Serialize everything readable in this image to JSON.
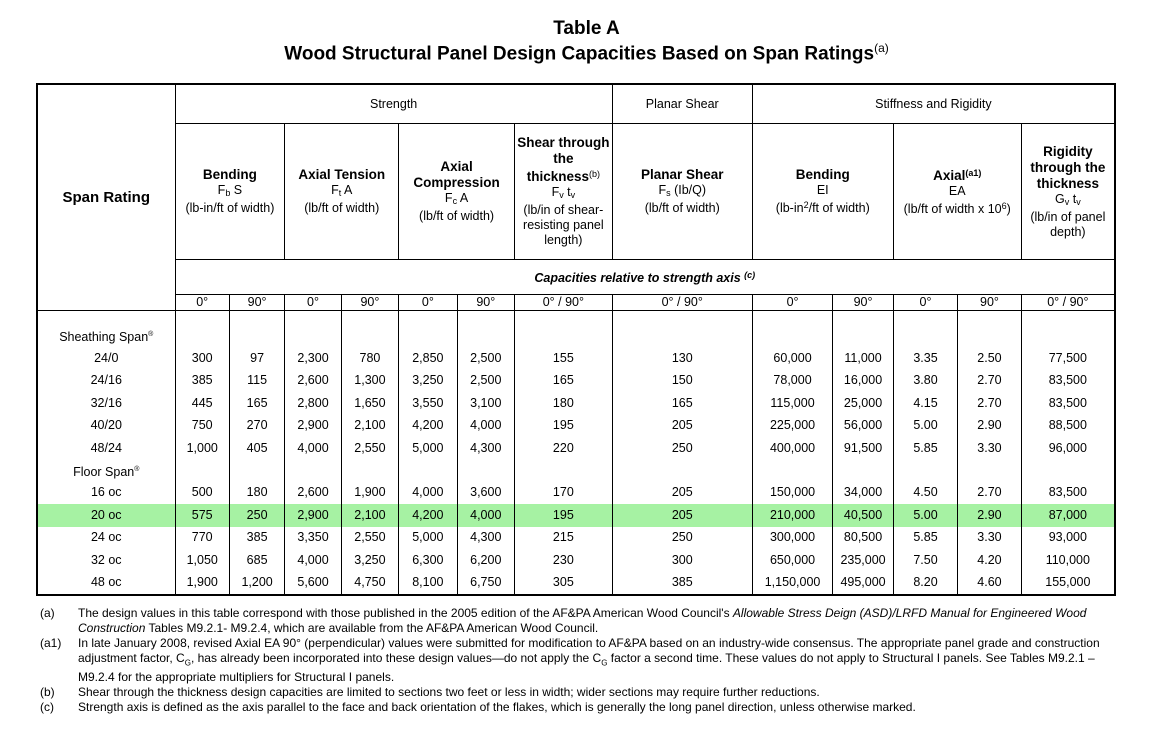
{
  "title": "Table A",
  "subtitle": "Wood Structural Panel Design Capacities Based on Span Ratings",
  "subtitle_note": "(a)",
  "groups": {
    "span_rating": "Span Rating",
    "strength": "Strength",
    "planar_shear": "Planar Shear",
    "stiffness": "Stiffness and Rigidity"
  },
  "columns": {
    "bending": {
      "name": "Bending",
      "sym": "F",
      "sub": "b",
      "sym2": " S",
      "unit": "(lb-in/ft of width)"
    },
    "axial_tension": {
      "name": "Axial Tension",
      "sym": "F",
      "sub": "t",
      "sym2": " A",
      "unit": "(lb/ft of width)"
    },
    "axial_compression": {
      "name": "Axial Compression",
      "sym": "F",
      "sub": "c",
      "sym2": " A",
      "unit": "(lb/ft of width)"
    },
    "shear_thickness": {
      "name": "Shear through the thickness",
      "note": "(b)",
      "sym": "F",
      "sub": "v",
      "sym2": " t",
      "sub2": "v",
      "unit": "(lb/in of shear-resisting panel length)"
    },
    "planar_shear": {
      "name": "Planar Shear",
      "sym": "F",
      "sub": "s",
      "sym2": " (Ib/Q)",
      "unit": "(lb/ft of width)"
    },
    "stiff_bending": {
      "name": "Bending",
      "sym": "EI",
      "unit": "(lb-in",
      "unit_sup": "2",
      "unit2": "/ft of width)"
    },
    "axial": {
      "name": "Axial",
      "note": "(a1)",
      "sym": "EA",
      "unit": "(lb/ft of width x 10",
      "unit_sup": "6",
      "unit2": ")"
    },
    "rigidity": {
      "name": "Rigidity through the thickness",
      "sym": "G",
      "sub": "v",
      "sym2": " t",
      "sub2": "v",
      "unit": "(lb/in of panel depth)"
    }
  },
  "capacities_note": "Capacities relative to strength axis",
  "capacities_note_ref": "(c)",
  "angles": [
    "0°",
    "90°",
    "0°",
    "90°",
    "0°",
    "90°",
    "0° / 90°",
    "0° / 90°",
    "0°",
    "90°",
    "0°",
    "90°",
    "0° / 90°"
  ],
  "sections": [
    {
      "label": "Sheathing Span",
      "mark": "®",
      "rows": [
        {
          "label": "24/0",
          "values": [
            "300",
            "97",
            "2,300",
            "780",
            "2,850",
            "2,500",
            "155",
            "130",
            "60,000",
            "11,000",
            "3.35",
            "2.50",
            "77,500"
          ]
        },
        {
          "label": "24/16",
          "values": [
            "385",
            "115",
            "2,600",
            "1,300",
            "3,250",
            "2,500",
            "165",
            "150",
            "78,000",
            "16,000",
            "3.80",
            "2.70",
            "83,500"
          ]
        },
        {
          "label": "32/16",
          "values": [
            "445",
            "165",
            "2,800",
            "1,650",
            "3,550",
            "3,100",
            "180",
            "165",
            "115,000",
            "25,000",
            "4.15",
            "2.70",
            "83,500"
          ]
        },
        {
          "label": "40/20",
          "values": [
            "750",
            "270",
            "2,900",
            "2,100",
            "4,200",
            "4,000",
            "195",
            "205",
            "225,000",
            "56,000",
            "5.00",
            "2.90",
            "88,500"
          ]
        },
        {
          "label": "48/24",
          "values": [
            "1,000",
            "405",
            "4,000",
            "2,550",
            "5,000",
            "4,300",
            "220",
            "250",
            "400,000",
            "91,500",
            "5.85",
            "3.30",
            "96,000"
          ]
        }
      ]
    },
    {
      "label": "Floor Span",
      "mark": "®",
      "rows": [
        {
          "label": "16 oc",
          "values": [
            "500",
            "180",
            "2,600",
            "1,900",
            "4,000",
            "3,600",
            "170",
            "205",
            "150,000",
            "34,000",
            "4.50",
            "2.70",
            "83,500"
          ]
        },
        {
          "label": "20 oc",
          "highlight": true,
          "values": [
            "575",
            "250",
            "2,900",
            "2,100",
            "4,200",
            "4,000",
            "195",
            "205",
            "210,000",
            "40,500",
            "5.00",
            "2.90",
            "87,000"
          ]
        },
        {
          "label": "24 oc",
          "values": [
            "770",
            "385",
            "3,350",
            "2,550",
            "5,000",
            "4,300",
            "215",
            "250",
            "300,000",
            "80,500",
            "5.85",
            "3.30",
            "93,000"
          ]
        },
        {
          "label": "32 oc",
          "values": [
            "1,050",
            "685",
            "4,000",
            "3,250",
            "6,300",
            "6,200",
            "230",
            "300",
            "650,000",
            "235,000",
            "7.50",
            "4.20",
            "110,000"
          ]
        },
        {
          "label": "48 oc",
          "values": [
            "1,900",
            "1,200",
            "5,600",
            "4,750",
            "8,100",
            "6,750",
            "305",
            "385",
            "1,150,000",
            "495,000",
            "8.20",
            "4.60",
            "155,000"
          ]
        }
      ]
    }
  ],
  "highlight_color": "#a6f2a3",
  "notes": [
    {
      "key": "(a)",
      "text_before": "The design values in this table correspond with those published in the 2005 edition of the AF&PA American Wood Council's ",
      "italic": "Allowable Stress Deign (ASD)/LRFD Manual for Engineered Wood Construction",
      "text_after": " Tables M9.2.1- M9.2.4, which are available from the AF&PA American Wood Council."
    },
    {
      "key": "(a1)",
      "text_before": "In late January 2008, revised Axial EA 90° (perpendicular) values were submitted for modification to AF&PA based on an industry-wide consensus.  The appropriate panel grade and construction adjustment factor, C",
      "sub": "G",
      "text_mid": ", has already been incorporated into these design values—do not apply the C",
      "sub2": "G",
      "text_after": " factor a second time.  These values do not apply to Structural I panels.  See Tables M9.2.1 – M9.2.4 for the appropriate multipliers for Structural I panels."
    },
    {
      "key": "(b)",
      "text": "Shear through the thickness design capacities are limited to sections two feet or less in width; wider sections may require further reductions."
    },
    {
      "key": "(c)",
      "text": "Strength axis is defined as the axis parallel to the face and back orientation of the flakes, which is generally the long panel direction, unless otherwise marked."
    }
  ]
}
